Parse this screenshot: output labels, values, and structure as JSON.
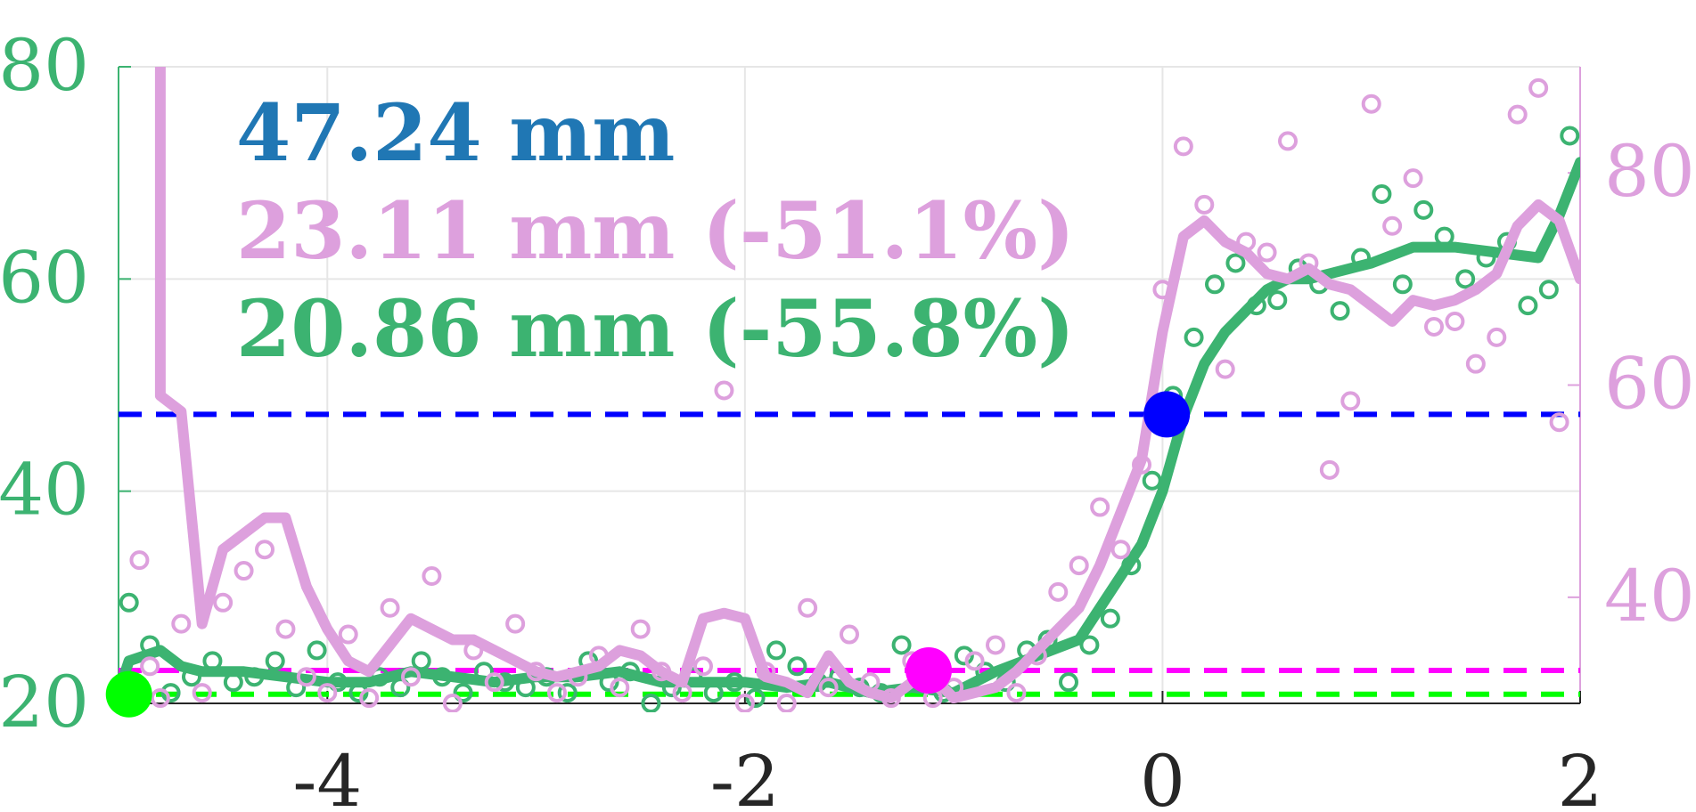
{
  "chart_data": {
    "type": "scatter",
    "x_range": [
      -5,
      2
    ],
    "y_left_range": [
      20,
      80
    ],
    "y_right_range": [
      30,
      90
    ],
    "x_ticks": [
      -4,
      -2,
      0,
      2
    ],
    "x_tick_labels": [
      "-4",
      "-2",
      "0",
      "2"
    ],
    "y_left_ticks": [
      20,
      40,
      60,
      80
    ],
    "y_left_tick_labels": [
      "20",
      "40",
      "60",
      "80"
    ],
    "y_right_ticks": [
      40,
      60,
      80
    ],
    "y_right_tick_labels": [
      "40",
      "60",
      "80"
    ],
    "grid": true,
    "annotations": [
      {
        "text": "47.24 mm",
        "color": "#2077b4"
      },
      {
        "text": "23.11 mm (-51.1%)",
        "color": "#dda0dd"
      },
      {
        "text": "20.86 mm (-55.8%)",
        "color": "#3cb371"
      }
    ],
    "reference_lines": [
      {
        "y": 47.24,
        "axis": "left",
        "color": "#0000ff"
      },
      {
        "y": 23.11,
        "axis": "left",
        "color": "#ff00ff"
      },
      {
        "y": 20.86,
        "axis": "left",
        "color": "#00ff00"
      }
    ],
    "markers": [
      {
        "x": 0.02,
        "y": 47.24,
        "axis": "left",
        "color": "#0000ff"
      },
      {
        "x": -1.12,
        "y": 23.11,
        "axis": "left",
        "color": "#ff00ff"
      },
      {
        "x": -4.95,
        "y": 20.86,
        "axis": "left",
        "color": "#00ff00"
      }
    ],
    "series": [
      {
        "axis": "left",
        "color": "#3cb371",
        "line": {
          "x": [
            -5.0,
            -4.95,
            -4.8,
            -4.7,
            -4.6,
            -4.4,
            -4.2,
            -4.0,
            -3.8,
            -3.6,
            -3.4,
            -3.2,
            -3.0,
            -2.8,
            -2.6,
            -2.4,
            -2.2,
            -2.0,
            -1.8,
            -1.6,
            -1.4,
            -1.2,
            -1.0,
            -0.8,
            -0.6,
            -0.4,
            -0.3,
            -0.2,
            -0.1,
            0.0,
            0.1,
            0.2,
            0.3,
            0.4,
            0.5,
            0.6,
            0.7,
            0.8,
            0.9,
            1.0,
            1.2,
            1.4,
            1.6,
            1.8,
            1.9,
            2.0
          ],
          "y": [
            21.0,
            24.0,
            25.0,
            23.5,
            23.0,
            23.0,
            22.5,
            22.0,
            22.0,
            23.0,
            22.5,
            22.0,
            22.5,
            22.5,
            23.0,
            22.0,
            22.0,
            22.0,
            21.5,
            22.0,
            21.0,
            21.5,
            21.0,
            23.0,
            24.5,
            26.0,
            29.0,
            32.0,
            35.0,
            40.0,
            47.0,
            52.0,
            55.0,
            57.0,
            59.0,
            60.0,
            60.0,
            60.5,
            61.0,
            61.5,
            63.0,
            63.0,
            62.5,
            62.0,
            66.0,
            71.0
          ]
        },
        "points": {
          "x": [
            -4.98,
            -4.95,
            -4.85,
            -4.75,
            -4.65,
            -4.55,
            -4.45,
            -4.35,
            -4.25,
            -4.15,
            -4.05,
            -3.95,
            -3.85,
            -3.75,
            -3.65,
            -3.55,
            -3.45,
            -3.35,
            -3.25,
            -3.15,
            -3.05,
            -2.95,
            -2.85,
            -2.75,
            -2.65,
            -2.55,
            -2.45,
            -2.35,
            -2.25,
            -2.15,
            -2.05,
            -1.95,
            -1.85,
            -1.75,
            -1.65,
            -1.55,
            -1.45,
            -1.35,
            -1.25,
            -1.15,
            -1.05,
            -0.95,
            -0.85,
            -0.75,
            -0.65,
            -0.55,
            -0.45,
            -0.35,
            -0.25,
            -0.15,
            -0.05,
            0.05,
            0.15,
            0.25,
            0.35,
            0.45,
            0.55,
            0.65,
            0.75,
            0.85,
            0.95,
            1.05,
            1.15,
            1.25,
            1.35,
            1.45,
            1.55,
            1.65,
            1.75,
            1.85,
            1.95
          ],
          "y": [
            21.0,
            29.5,
            25.5,
            21.0,
            22.5,
            24.0,
            22.0,
            22.5,
            24.0,
            21.5,
            25.0,
            22.0,
            21.0,
            22.5,
            21.5,
            24.0,
            22.5,
            21.0,
            23.0,
            22.0,
            21.5,
            22.5,
            21.0,
            24.0,
            22.0,
            23.0,
            20.0,
            21.5,
            22.5,
            21.0,
            22.0,
            20.5,
            25.0,
            23.5,
            22.0,
            22.5,
            21.5,
            21.0,
            25.5,
            22.0,
            21.0,
            24.5,
            23.0,
            22.0,
            25.0,
            26.0,
            22.0,
            25.5,
            28.0,
            33.0,
            41.0,
            49.0,
            54.5,
            59.5,
            61.5,
            57.5,
            58.0,
            61.0,
            59.5,
            57.0,
            62.0,
            68.0,
            59.5,
            66.5,
            64.0,
            60.0,
            62.0,
            63.5,
            57.5,
            59.0,
            73.5
          ]
        }
      },
      {
        "axis": "right",
        "color": "#dda0dd",
        "line": {
          "x": [
            -4.8,
            -4.8,
            -4.7,
            -4.6,
            -4.5,
            -4.4,
            -4.3,
            -4.2,
            -4.1,
            -4.0,
            -3.9,
            -3.8,
            -3.7,
            -3.6,
            -3.5,
            -3.4,
            -3.3,
            -3.2,
            -3.1,
            -3.0,
            -2.9,
            -2.8,
            -2.7,
            -2.6,
            -2.5,
            -2.4,
            -2.3,
            -2.2,
            -2.1,
            -2.0,
            -1.9,
            -1.8,
            -1.7,
            -1.6,
            -1.5,
            -1.4,
            -1.3,
            -1.2,
            -1.1,
            -1.0,
            -0.9,
            -0.8,
            -0.7,
            -0.6,
            -0.5,
            -0.4,
            -0.3,
            -0.2,
            -0.1,
            0.0,
            0.1,
            0.2,
            0.3,
            0.4,
            0.5,
            0.6,
            0.7,
            0.8,
            0.9,
            1.0,
            1.1,
            1.2,
            1.3,
            1.4,
            1.5,
            1.6,
            1.7,
            1.8,
            1.9,
            2.0
          ],
          "y": [
            90.0,
            59.0,
            57.5,
            37.5,
            44.5,
            46.0,
            47.5,
            47.5,
            41.0,
            37.0,
            34.0,
            33.0,
            35.5,
            38.0,
            37.0,
            36.0,
            36.0,
            35.0,
            34.0,
            33.0,
            32.5,
            33.0,
            33.5,
            35.0,
            34.5,
            33.0,
            32.0,
            38.0,
            38.5,
            38.0,
            32.5,
            32.0,
            31.0,
            34.5,
            32.0,
            31.0,
            30.5,
            32.0,
            32.5,
            30.5,
            31.0,
            31.5,
            33.0,
            35.0,
            37.0,
            39.0,
            43.0,
            48.0,
            53.0,
            65.0,
            74.0,
            75.5,
            73.5,
            72.5,
            70.5,
            70.0,
            71.0,
            69.5,
            69.0,
            67.5,
            66.0,
            68.0,
            67.5,
            68.0,
            69.0,
            70.5,
            75.0,
            77.0,
            75.5,
            70.0
          ]
        },
        "points": {
          "x": [
            -4.9,
            -4.85,
            -4.8,
            -4.7,
            -4.6,
            -4.5,
            -4.4,
            -4.3,
            -4.2,
            -4.1,
            -4.0,
            -3.9,
            -3.8,
            -3.7,
            -3.6,
            -3.5,
            -3.4,
            -3.3,
            -3.2,
            -3.1,
            -3.0,
            -2.9,
            -2.8,
            -2.7,
            -2.6,
            -2.5,
            -2.4,
            -2.3,
            -2.2,
            -2.1,
            -2.0,
            -1.9,
            -1.8,
            -1.7,
            -1.6,
            -1.5,
            -1.4,
            -1.3,
            -1.2,
            -1.1,
            -1.0,
            -0.9,
            -0.8,
            -0.7,
            -0.6,
            -0.5,
            -0.4,
            -0.3,
            -0.2,
            -0.1,
            0.0,
            0.1,
            0.2,
            0.3,
            0.4,
            0.5,
            0.6,
            0.7,
            0.8,
            0.9,
            1.0,
            1.1,
            1.2,
            1.3,
            1.4,
            1.5,
            1.6,
            1.7,
            1.8,
            1.9
          ],
          "y": [
            43.5,
            33.5,
            30.5,
            37.5,
            31.0,
            39.5,
            42.5,
            44.5,
            37.0,
            32.5,
            31.0,
            36.5,
            30.5,
            39.0,
            32.5,
            42.0,
            30.0,
            35.0,
            32.0,
            37.5,
            33.0,
            31.0,
            32.5,
            34.5,
            31.5,
            37.0,
            33.0,
            31.0,
            33.5,
            59.5,
            30.0,
            33.0,
            30.0,
            39.0,
            31.5,
            36.5,
            32.0,
            30.5,
            34.0,
            30.5,
            31.5,
            34.0,
            35.5,
            31.0,
            34.5,
            40.5,
            43.0,
            48.5,
            44.5,
            52.5,
            69.0,
            82.5,
            77.0,
            61.5,
            73.5,
            72.5,
            83.0,
            71.5,
            52.0,
            58.5,
            86.5,
            75.0,
            79.5,
            65.5,
            66.0,
            62.0,
            64.5,
            85.5,
            88.0,
            56.5
          ]
        }
      }
    ]
  }
}
